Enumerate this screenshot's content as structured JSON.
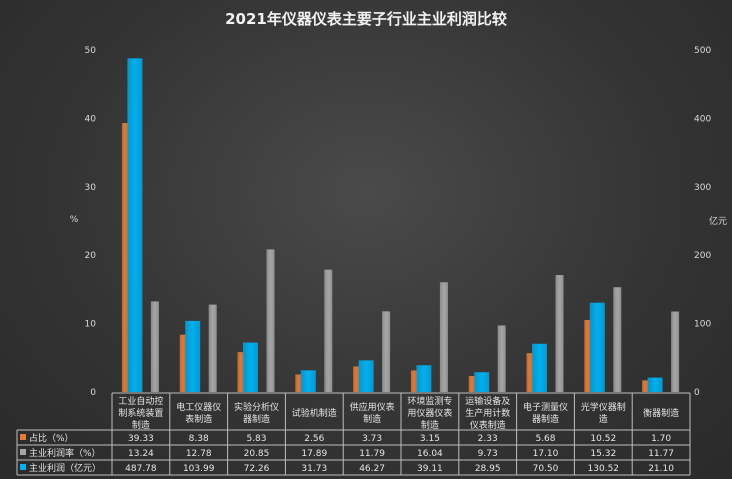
{
  "chart_data": {
    "type": "bar",
    "title": "2021年仪器仪表主要子行业主业利润比较",
    "ylabel_left": "%",
    "ylabel_right": "亿元",
    "ylim_left": [
      0,
      50
    ],
    "ylim_right": [
      0,
      500
    ],
    "yticks_left": [
      0,
      10,
      20,
      30,
      40,
      50
    ],
    "yticks_right": [
      0,
      100,
      200,
      300,
      400,
      500
    ],
    "categories": [
      [
        "工业自动控",
        "制系统装置",
        "制造"
      ],
      [
        "电工仪器仪",
        "表制造"
      ],
      [
        "实验分析仪",
        "器制造"
      ],
      [
        "试验机制造"
      ],
      [
        "供应用仪表",
        "制造"
      ],
      [
        "环境监测专",
        "用仪器仪表",
        "制造"
      ],
      [
        "运输设备及",
        "生产用计数",
        "仪表制造"
      ],
      [
        "电子测量仪",
        "器制造"
      ],
      [
        "光学仪器制",
        "造"
      ],
      [
        "衡器制造"
      ]
    ],
    "series": [
      {
        "name": "占比（%）",
        "axis": "left",
        "color": "#e07b39",
        "values": [
          39.33,
          8.38,
          5.83,
          2.56,
          3.73,
          3.15,
          2.33,
          5.68,
          10.52,
          1.7
        ],
        "labels": [
          "39.33",
          "8.38",
          "5.83",
          "2.56",
          "3.73",
          "3.15",
          "2.33",
          "5.68",
          "10.52",
          "1.70"
        ]
      },
      {
        "name": "主业利润（亿元）",
        "axis": "right",
        "color": "#00b0f0",
        "values": [
          487.78,
          103.99,
          72.26,
          31.73,
          46.27,
          39.11,
          28.95,
          70.5,
          130.52,
          21.1
        ],
        "labels": [
          "487.78",
          "103.99",
          "72.26",
          "31.73",
          "46.27",
          "39.11",
          "28.95",
          "70.50",
          "130.52",
          "21.10"
        ]
      },
      {
        "name": "主业利润率（%）",
        "axis": "left",
        "color": "#a6a6a6",
        "values": [
          13.24,
          12.78,
          20.85,
          17.89,
          11.79,
          16.04,
          9.73,
          17.1,
          15.32,
          11.77
        ],
        "labels": [
          "13.24",
          "12.78",
          "20.85",
          "17.89",
          "11.79",
          "16.04",
          "9.73",
          "17.10",
          "15.32",
          "11.77"
        ]
      }
    ],
    "table_row_order": [
      0,
      2,
      1
    ],
    "grid": false,
    "legend": "data-table-rows"
  }
}
